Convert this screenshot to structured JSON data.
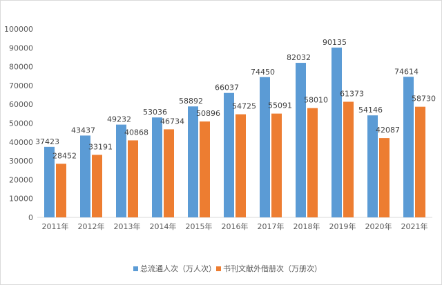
{
  "chart_data": {
    "type": "bar",
    "categories": [
      "2011年",
      "2012年",
      "2013年",
      "2014年",
      "2015年",
      "2016年",
      "2017年",
      "2018年",
      "2019年",
      "2020年",
      "2021年"
    ],
    "series": [
      {
        "name": "总流通人次（万人次）",
        "color": "#5b9bd5",
        "values": [
          37423,
          43437,
          49232,
          53036,
          58892,
          66037,
          74450,
          82032,
          90135,
          54146,
          74614
        ]
      },
      {
        "name": "书刊文献外借册次（万册次）",
        "color": "#ed7d31",
        "values": [
          28452,
          33191,
          40868,
          46734,
          50896,
          54725,
          55091,
          58010,
          61373,
          42087,
          58730
        ]
      }
    ],
    "ylim": [
      0,
      100000
    ],
    "yticks": [
      0,
      10000,
      20000,
      30000,
      40000,
      50000,
      60000,
      70000,
      80000,
      90000,
      100000
    ],
    "grid": false,
    "legend_position": "bottom",
    "data_labels": true
  }
}
